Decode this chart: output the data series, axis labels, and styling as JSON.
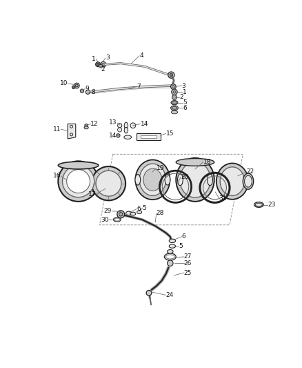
{
  "background_color": "#ffffff",
  "fig_width": 4.38,
  "fig_height": 5.33,
  "dpi": 100,
  "label_font_size": 6.5,
  "line_color": "#666666",
  "text_color": "#111111",
  "dark": "#222222",
  "mid": "#666666",
  "light": "#aaaaaa",
  "lighter": "#cccccc",
  "lightest": "#e8e8e8"
}
